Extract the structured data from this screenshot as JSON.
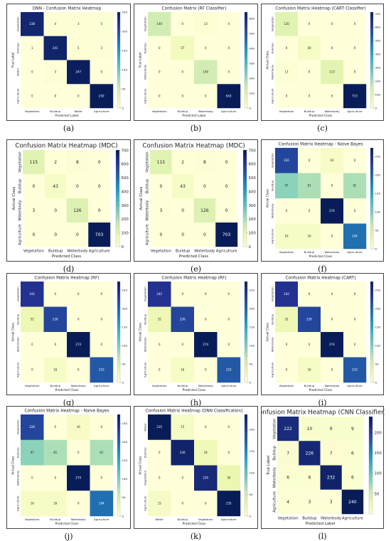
{
  "chart_data": [
    {
      "type": "heatmap",
      "panel": "(a)",
      "title": "DNN - Confusion Matrix Heatmap",
      "xlabel": "Predicted Label",
      "ylabel": "True Label",
      "x_categories": [
        "Vegetation",
        "Buildup",
        "Water",
        "Agriculture"
      ],
      "y_categories": [
        "Vegetation",
        "Buildup",
        "Water",
        "Agriculture"
      ],
      "values": [
        [
          238,
          4,
          3,
          5
        ],
        [
          1,
          241,
          5,
          3
        ],
        [
          0,
          3,
          247,
          0
        ],
        [
          0,
          0,
          0,
          250
        ]
      ],
      "colorbar": {
        "min": 0,
        "max": 250,
        "ticks": [
          0,
          50,
          100,
          150,
          200,
          250
        ]
      }
    },
    {
      "type": "heatmap",
      "panel": "(b)",
      "title": "Confusion Matrix (RF Classifier)",
      "xlabel": "Predicted Label",
      "ylabel": "True Label",
      "x_categories": [
        "Vegetation",
        "Buildup",
        "Waterbody",
        "Agriculture"
      ],
      "y_categories": [
        "Vegetation",
        "Buildup",
        "Waterbody",
        "Agriculture"
      ],
      "values": [
        [
          140,
          0,
          13,
          0
        ],
        [
          0,
          57,
          0,
          0
        ],
        [
          0,
          0,
          140,
          0
        ],
        [
          0,
          0,
          0,
          643
        ]
      ],
      "colorbar": {
        "min": 0,
        "max": 643,
        "ticks": [
          0,
          100,
          200,
          300,
          400,
          500,
          600
        ]
      }
    },
    {
      "type": "heatmap",
      "panel": "(c)",
      "title": "Confusion Matrix Heatmap (CART Classifier)",
      "xlabel": "Predicted Class",
      "ylabel": "Actual Class",
      "x_categories": [
        "Vegetation",
        "Buildup",
        "Waterbody",
        "Agriculture"
      ],
      "y_categories": [
        "Vegetation",
        "Buildup",
        "Waterbody",
        "Agriculture"
      ],
      "values": [
        [
          120,
          0,
          0,
          0
        ],
        [
          0,
          40,
          0,
          0
        ],
        [
          13,
          0,
          113,
          0
        ],
        [
          0,
          0,
          0,
          713
        ]
      ],
      "colorbar": {
        "min": 0,
        "max": 713,
        "ticks": [
          0,
          100,
          200,
          300,
          400,
          500,
          600,
          700
        ]
      }
    },
    {
      "type": "heatmap",
      "panel": "(d)",
      "title": "Confusion Matrix Heatmap (MDC)",
      "xlabel": "Predicted Class",
      "ylabel": "Actual Class",
      "x_categories": [
        "Vegetation",
        "Buildup",
        "Waterbody",
        "Agriculture"
      ],
      "y_categories": [
        "Vegetation",
        "Buildup",
        "Waterbody",
        "Agriculture"
      ],
      "values": [
        [
          115,
          2,
          8,
          0
        ],
        [
          0,
          43,
          0,
          0
        ],
        [
          3,
          0,
          126,
          0
        ],
        [
          0,
          0,
          0,
          703
        ]
      ],
      "colorbar": {
        "min": 0,
        "max": 703,
        "ticks": [
          0,
          100,
          200,
          300,
          400,
          500,
          600,
          700
        ]
      }
    },
    {
      "type": "heatmap",
      "panel": "(e)",
      "title": "Confusion Matrix Heatmap (MDC)",
      "xlabel": "Predicted Class",
      "ylabel": "Actual Class",
      "x_categories": [
        "Vegetation",
        "Buildup",
        "Waterbody",
        "Agriculture"
      ],
      "y_categories": [
        "Vegetation",
        "Buildup",
        "Waterbody",
        "Agriculture"
      ],
      "values": [
        [
          115,
          2,
          8,
          0
        ],
        [
          0,
          43,
          0,
          0
        ],
        [
          3,
          0,
          126,
          0
        ],
        [
          0,
          0,
          0,
          703
        ]
      ],
      "colorbar": {
        "min": 0,
        "max": 703,
        "ticks": [
          0,
          100,
          200,
          300,
          400,
          500,
          600,
          700
        ]
      }
    },
    {
      "type": "heatmap",
      "panel": "(f)",
      "title": "Confusion Matrix Heatmap - Naive Bayes",
      "xlabel": "Predicted Class",
      "ylabel": "Actual Class",
      "x_categories": [
        "Vegetation",
        "Buildup",
        "Waterbody",
        "Agriculture"
      ],
      "y_categories": [
        "Vegetation",
        "Buildup",
        "Waterbody",
        "Agriculture"
      ],
      "values": [
        [
          226,
          0,
          16,
          0
        ],
        [
          97,
          81,
          0,
          81
        ],
        [
          0,
          0,
          274,
          0
        ],
        [
          16,
          16,
          0,
          194
        ]
      ],
      "colorbar": {
        "min": 0,
        "max": 274,
        "ticks": [
          0,
          50,
          100,
          150,
          200,
          250
        ]
      }
    },
    {
      "type": "heatmap",
      "panel": "(g)",
      "title": "Confusion Matrix Heatmap (RF)",
      "xlabel": "Predicted Class",
      "ylabel": "Actual Class",
      "x_categories": [
        "Vegetation",
        "Buildup",
        "Waterbody",
        "Agriculture"
      ],
      "y_categories": [
        "Vegetation",
        "Buildup",
        "Waterbody",
        "Agriculture"
      ],
      "values": [
        [
          242,
          0,
          0,
          0
        ],
        [
          32,
          226,
          0,
          0
        ],
        [
          0,
          0,
          274,
          0
        ],
        [
          0,
          16,
          0,
          210
        ]
      ],
      "colorbar": {
        "min": 0,
        "max": 274,
        "ticks": [
          0,
          50,
          100,
          150,
          200,
          250
        ]
      }
    },
    {
      "type": "heatmap",
      "panel": "(h)",
      "title": "Confusion Matrix Heatmap (RF)",
      "xlabel": "Predicted Class",
      "ylabel": "Actual Class",
      "x_categories": [
        "Vegetation",
        "Buildup",
        "Waterbody",
        "Agriculture"
      ],
      "y_categories": [
        "Vegetation",
        "Buildup",
        "Waterbody",
        "Agriculture"
      ],
      "values": [
        [
          242,
          0,
          0,
          0
        ],
        [
          32,
          226,
          0,
          0
        ],
        [
          0,
          0,
          274,
          0
        ],
        [
          0,
          16,
          0,
          210
        ]
      ],
      "colorbar": {
        "min": 0,
        "max": 274,
        "ticks": [
          0,
          50,
          100,
          150,
          200,
          250
        ]
      }
    },
    {
      "type": "heatmap",
      "panel": "(i)",
      "title": "Confusion Matrix Heatmap (CART)",
      "xlabel": "Predicted Class",
      "ylabel": "Actual Class",
      "x_categories": [
        "Vegetation",
        "Buildup",
        "Waterbody",
        "Agriculture"
      ],
      "y_categories": [
        "Vegetation",
        "Buildup",
        "Waterbody",
        "Agriculture"
      ],
      "values": [
        [
          242,
          0,
          0,
          0
        ],
        [
          32,
          226,
          0,
          0
        ],
        [
          0,
          0,
          274,
          0
        ],
        [
          0,
          16,
          0,
          210
        ]
      ],
      "colorbar": {
        "min": 0,
        "max": 274,
        "ticks": [
          0,
          50,
          100,
          150,
          200,
          250
        ]
      }
    },
    {
      "type": "heatmap",
      "panel": "(j)",
      "title": "Confusion Matrix Heatmap - Naive Bayes",
      "xlabel": "Predicted Class",
      "ylabel": "Actual Class",
      "x_categories": [
        "Vegetation",
        "Buildup",
        "Waterbody",
        "Agriculture"
      ],
      "y_categories": [
        "Vegetation",
        "Buildup",
        "Waterbody",
        "Agriculture"
      ],
      "values": [
        [
          226,
          0,
          16,
          0
        ],
        [
          97,
          81,
          0,
          81
        ],
        [
          0,
          0,
          274,
          0
        ],
        [
          16,
          16,
          0,
          194
        ]
      ],
      "colorbar": {
        "min": 0,
        "max": 274,
        "ticks": [
          0,
          50,
          100,
          150,
          200,
          250
        ]
      }
    },
    {
      "type": "heatmap",
      "panel": "(k)",
      "title": "Confusion Matrix Heatmap (DNN Classification)",
      "xlabel": "Predicted Class",
      "ylabel": "Actual Class",
      "x_categories": [
        "Water",
        "Buildup",
        "Vegetation",
        "Agriculture"
      ],
      "y_categories": [
        "Water",
        "Buildup",
        "Vegetation",
        "Agriculture"
      ],
      "values": [
        [
          235,
          15,
          0,
          0
        ],
        [
          0,
          226,
          24,
          0
        ],
        [
          0,
          0,
          220,
          30
        ],
        [
          15,
          0,
          0,
          235
        ]
      ],
      "colorbar": {
        "min": 0,
        "max": 235,
        "ticks": [
          0,
          50,
          100,
          150,
          200
        ]
      }
    },
    {
      "type": "heatmap",
      "panel": "(l)",
      "title": "Confusion Matrix Heatmap (CNN Classifier)",
      "xlabel": "Predicted Label",
      "ylabel": "True Label",
      "x_categories": [
        "Vegetation",
        "Buildup",
        "Waterbody",
        "Agriculture"
      ],
      "y_categories": [
        "Vegetation",
        "Buildup",
        "Waterbody",
        "Agriculture"
      ],
      "values": [
        [
          222,
          10,
          9,
          9
        ],
        [
          7,
          226,
          7,
          6
        ],
        [
          6,
          6,
          232,
          6
        ],
        [
          4,
          3,
          3,
          240
        ]
      ],
      "colorbar": {
        "min": 0,
        "max": 240,
        "ticks": [
          50,
          100,
          150,
          200
        ]
      }
    }
  ]
}
